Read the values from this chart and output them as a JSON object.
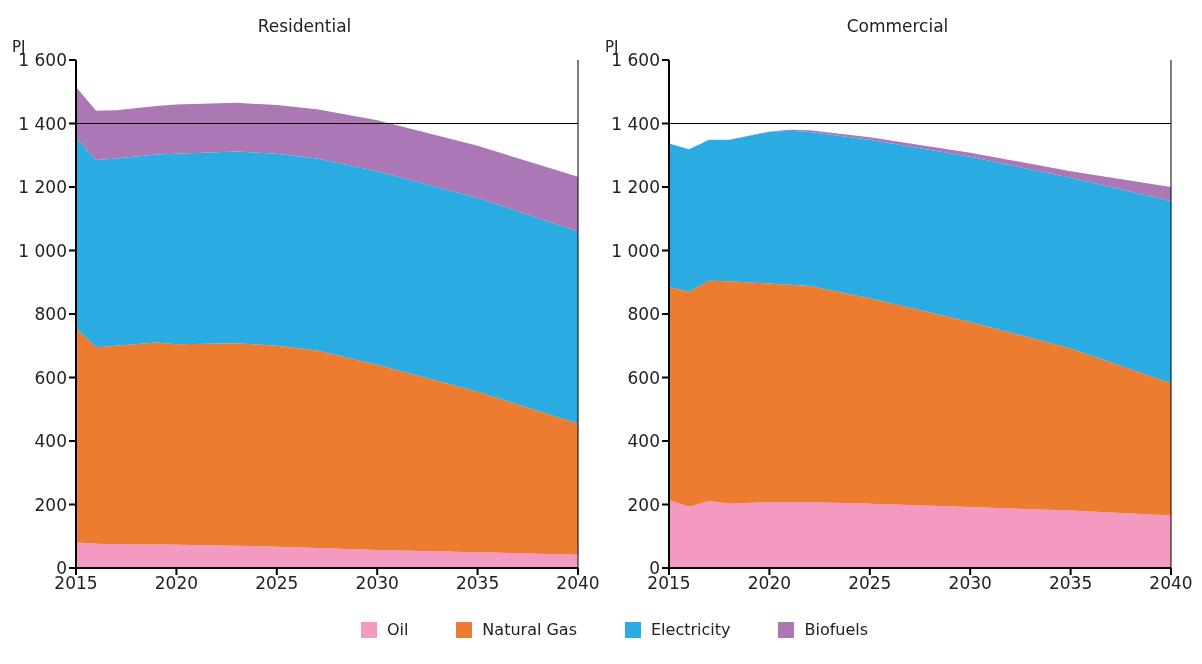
{
  "chart_data": [
    {
      "type": "area",
      "title": "Residential",
      "ylabel": "PJ",
      "stacked": true,
      "x": [
        2015,
        2016,
        2017,
        2019,
        2020,
        2023,
        2025,
        2027,
        2030,
        2035,
        2040
      ],
      "series": [
        {
          "name": "Oil",
          "color": "#f49ac1",
          "values": [
            80,
            76,
            75,
            74,
            73,
            70,
            67,
            63,
            57,
            50,
            42
          ]
        },
        {
          "name": "Natural Gas",
          "color": "#ec7c30",
          "values": [
            675,
            619,
            625,
            636,
            632,
            638,
            633,
            622,
            583,
            505,
            413
          ]
        },
        {
          "color": "#2aabe2",
          "values": [
            600,
            590,
            590,
            592,
            600,
            604,
            605,
            605,
            610,
            610,
            605
          ]
        },
        {
          "color": "#ab77b4",
          "values": [
            160,
            155,
            152,
            153,
            155,
            153,
            153,
            155,
            160,
            165,
            172
          ]
        }
      ],
      "xlim": [
        2015,
        2040
      ],
      "xticks": [
        2015,
        2020,
        2025,
        2030,
        2035,
        2040
      ],
      "ylim": [
        0,
        1600
      ],
      "yticks": [
        0,
        200,
        400,
        600,
        800,
        {
          "value": 1000,
          "label": "1 000"
        },
        {
          "value": 1200,
          "label": "1 200"
        },
        {
          "value": 1400,
          "label": "1 400"
        },
        {
          "value": 1600,
          "label": "1 600"
        }
      ],
      "ref_lines": [
        {
          "axis": "y",
          "value": 1400,
          "label": null,
          "color": "#000000"
        }
      ],
      "grid": false,
      "legend": "bottom"
    },
    {
      "type": "area",
      "title": "Commercial",
      "ylabel": "PJ",
      "stacked": true,
      "x": [
        2015,
        2016,
        2017,
        2018,
        2020,
        2021,
        2022,
        2025,
        2030,
        2035,
        2040
      ],
      "series": [
        {
          "color": "#f49ac1",
          "values": [
            214,
            193,
            211,
            202,
            208,
            208,
            207,
            202,
            192,
            181,
            165
          ]
        },
        {
          "color": "#ec7c30",
          "values": [
            670,
            677,
            694,
            701,
            688,
            684,
            681,
            648,
            583,
            510,
            417
          ]
        },
        {
          "name": "Electricity",
          "color": "#2aabe2",
          "values": [
            453,
            449,
            444,
            446,
            477,
            485,
            485,
            499,
            520,
            538,
            574
          ]
        },
        {
          "name": "Biofuels",
          "color": "#ab77b4",
          "values": [
            0,
            0,
            0,
            0,
            2,
            3,
            6,
            8,
            13,
            21,
            44
          ]
        }
      ],
      "xlim": [
        2015,
        2040
      ],
      "xticks": [
        2015,
        2020,
        2025,
        2030,
        2035,
        2040
      ],
      "ylim": [
        0,
        1600
      ],
      "yticks": [
        0,
        200,
        400,
        600,
        800,
        {
          "value": 1000,
          "label": "1 000"
        },
        {
          "value": 1200,
          "label": "1 200"
        },
        {
          "value": 1400,
          "label": "1 400"
        },
        {
          "value": 1600,
          "label": "1 600"
        }
      ],
      "ref_lines": [
        {
          "axis": "y",
          "value": 1400,
          "label": null,
          "color": "#000000"
        }
      ],
      "grid": false,
      "legend": "bottom"
    }
  ]
}
